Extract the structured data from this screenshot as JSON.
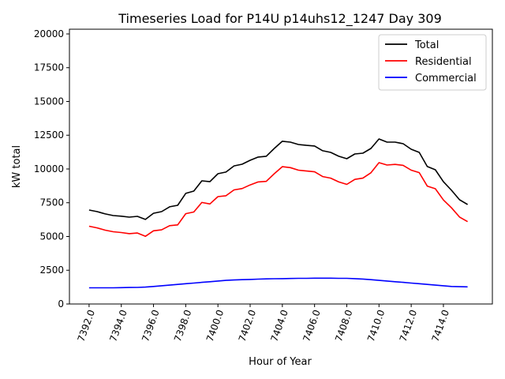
{
  "chart_data": {
    "type": "line",
    "title": "Timeseries Load for P14U p14uhs12_1247  Day 309",
    "xlabel": "Hour of Year",
    "ylabel": "kW total",
    "xlim": [
      7390.78,
      7417.04
    ],
    "ylim": [
      0,
      20350
    ],
    "x_start": 7392,
    "x_step": 0.5,
    "x_ticks": [
      7392,
      7394,
      7396,
      7398,
      7400,
      7402,
      7404,
      7406,
      7408,
      7410,
      7412,
      7414
    ],
    "x_tick_labels": [
      "7392.0",
      "7394.0",
      "7396.0",
      "7398.0",
      "7400.0",
      "7402.0",
      "7404.0",
      "7406.0",
      "7408.0",
      "7410.0",
      "7412.0",
      "7414.0"
    ],
    "y_ticks": [
      0,
      2500,
      5000,
      7500,
      10000,
      12500,
      15000,
      17500,
      20000
    ],
    "y_tick_labels": [
      "0",
      "2500",
      "5000",
      "7500",
      "10000",
      "12500",
      "15000",
      "17500",
      "20000"
    ],
    "grid": false,
    "legend_position": "top-right",
    "series": [
      {
        "name": "Total",
        "color": "#000000",
        "values": [
          6960,
          6840,
          6670,
          6550,
          6500,
          6430,
          6490,
          6260,
          6720,
          6840,
          7200,
          7310,
          8190,
          8360,
          9120,
          9060,
          9650,
          9770,
          10230,
          10350,
          10640,
          10880,
          10940,
          11520,
          12050,
          11990,
          11810,
          11750,
          11700,
          11350,
          11230,
          10940,
          10760,
          11110,
          11170,
          11520,
          12220,
          11990,
          11990,
          11870,
          11460,
          11230,
          10180,
          9940,
          9060,
          8420,
          7720,
          7370
        ]
      },
      {
        "name": "Residential",
        "color": "#ff0000",
        "values": [
          5760,
          5640,
          5470,
          5350,
          5290,
          5210,
          5260,
          5010,
          5420,
          5490,
          5800,
          5860,
          6690,
          6810,
          7520,
          7410,
          7950,
          8020,
          8450,
          8550,
          8820,
          9040,
          9080,
          9650,
          10170,
          10100,
          9910,
          9850,
          9790,
          9440,
          9320,
          9040,
          8860,
          9230,
          9320,
          9720,
          10470,
          10290,
          10340,
          10270,
          9910,
          9730,
          8730,
          8540,
          7710,
          7120,
          6440,
          6100
        ]
      },
      {
        "name": "Commercial",
        "color": "#0000ff",
        "values": [
          1200,
          1200,
          1200,
          1200,
          1210,
          1220,
          1230,
          1250,
          1300,
          1350,
          1400,
          1450,
          1500,
          1550,
          1600,
          1650,
          1700,
          1750,
          1780,
          1800,
          1820,
          1840,
          1860,
          1870,
          1880,
          1890,
          1900,
          1900,
          1910,
          1910,
          1910,
          1900,
          1900,
          1880,
          1850,
          1800,
          1750,
          1700,
          1650,
          1600,
          1550,
          1500,
          1450,
          1400,
          1350,
          1300,
          1280,
          1270
        ]
      }
    ]
  }
}
